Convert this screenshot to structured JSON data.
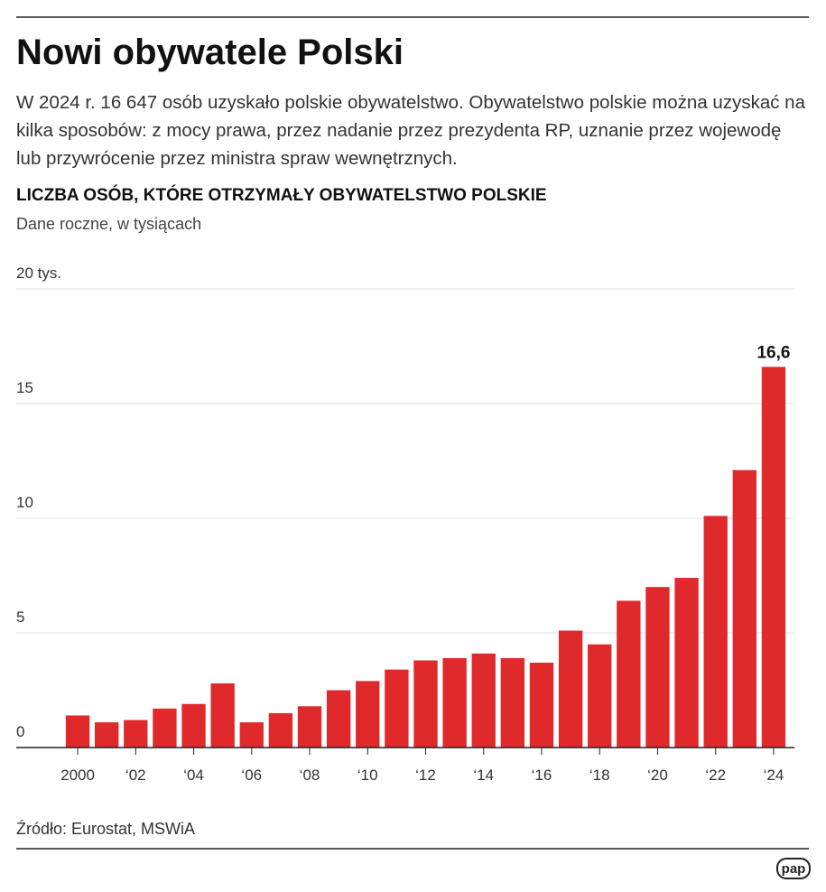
{
  "header": {
    "title": "Nowi obywatele Polski",
    "description": "W 2024 r. 16 647 osób uzyskało polskie obywatelstwo. Obywatelstwo polskie można uzyskać na kilka sposobów: z mocy prawa, przez nadanie przez prezydenta RP, uznanie przez wojewodę lub przywrócenie przez ministra spraw wewnętrznych."
  },
  "chart_data": {
    "type": "bar",
    "title": "LICZBA OSÓB, KTÓRE OTRZYMAŁY OBYWATELSTWO POLSKIE",
    "subtitle": "Dane roczne, w tysiącach",
    "categories": [
      "2000",
      null,
      "‘02",
      null,
      "‘04",
      null,
      "‘06",
      null,
      "‘08",
      null,
      "‘10",
      null,
      "‘12",
      null,
      "‘14",
      null,
      "‘16",
      null,
      "‘18",
      null,
      "‘20",
      null,
      "‘22",
      null,
      "‘24"
    ],
    "values": [
      1.4,
      1.1,
      1.2,
      1.7,
      1.9,
      2.8,
      1.1,
      1.5,
      1.8,
      2.5,
      2.9,
      3.4,
      3.8,
      3.9,
      4.1,
      3.9,
      3.7,
      5.1,
      4.5,
      6.4,
      7.0,
      7.4,
      10.1,
      12.1,
      16.6
    ],
    "value_labels": [
      null,
      null,
      null,
      null,
      null,
      null,
      null,
      null,
      null,
      null,
      null,
      null,
      null,
      null,
      null,
      null,
      null,
      null,
      null,
      null,
      null,
      null,
      null,
      null,
      "16,6"
    ],
    "color": "#e0292b",
    "ylim": [
      0,
      20
    ],
    "yticks": [
      0,
      5,
      10,
      15,
      {
        "value": 20,
        "label": "20 tys."
      }
    ],
    "grid": true
  },
  "footer": {
    "source": "Źródło: Eurostat, MSWiA",
    "logo": "pap"
  }
}
